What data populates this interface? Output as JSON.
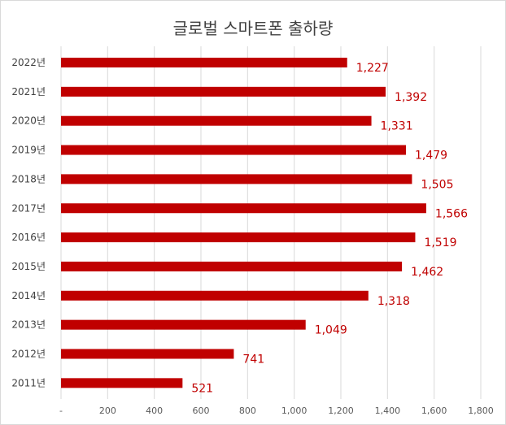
{
  "chart_data": {
    "type": "bar",
    "orientation": "horizontal",
    "title": "글로벌 스마트폰 출하량",
    "xlabel": "",
    "ylabel": "",
    "categories": [
      "2022년",
      "2021년",
      "2020년",
      "2019년",
      "2018년",
      "2017년",
      "2016년",
      "2015년",
      "2014년",
      "2013년",
      "2012년",
      "2011년"
    ],
    "values": [
      1227,
      1392,
      1331,
      1479,
      1505,
      1566,
      1519,
      1462,
      1318,
      1049,
      741,
      521
    ],
    "data_labels": [
      "1,227",
      "1,392",
      "1,331",
      "1,479",
      "1,505",
      "1,566",
      "1,519",
      "1,462",
      "1,318",
      "1,049",
      "741",
      "521"
    ],
    "xlim": [
      0,
      1800
    ],
    "x_ticks": [
      0,
      200,
      400,
      600,
      800,
      1000,
      1200,
      1400,
      1600,
      1800
    ],
    "x_tick_labels": [
      "-",
      "200",
      "400",
      "600",
      "800",
      "1,000",
      "1,200",
      "1,400",
      "1,600",
      "1,800"
    ],
    "bar_color": "#c00000",
    "gridlines": "vertical",
    "legend": "none"
  }
}
